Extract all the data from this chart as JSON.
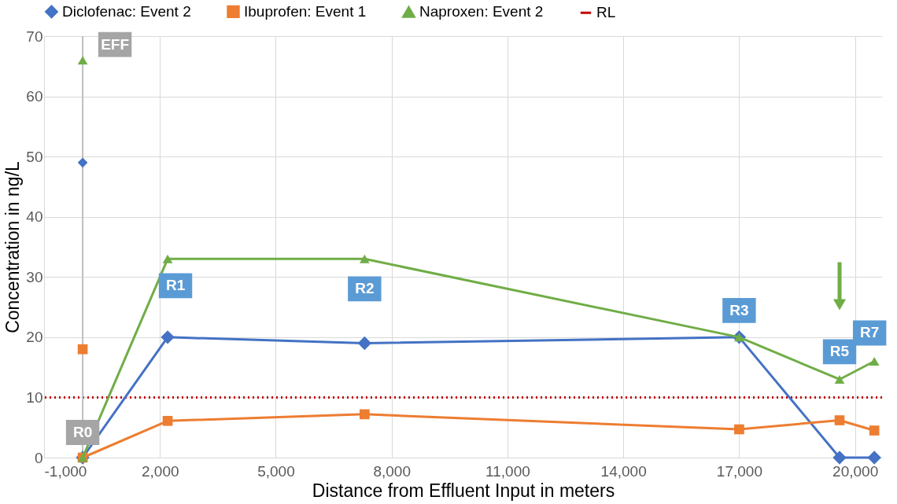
{
  "chart_data": {
    "type": "line",
    "xlabel": "Distance from Effluent Input in meters",
    "ylabel": "Concentration in ng/L",
    "xlim": [
      -1000,
      20700
    ],
    "xticks": [
      {
        "value": -1000,
        "label": "-1,000"
      },
      {
        "value": 2000,
        "label": "2,000"
      },
      {
        "value": 5000,
        "label": "5,000"
      },
      {
        "value": 8000,
        "label": "8,000"
      },
      {
        "value": 11000,
        "label": "11,000"
      },
      {
        "value": 14000,
        "label": "14,000"
      },
      {
        "value": 17000,
        "label": "17,000"
      },
      {
        "value": 20000,
        "label": "20,000"
      }
    ],
    "ylim": [
      0,
      70
    ],
    "yticks": [
      0,
      10,
      20,
      30,
      40,
      50,
      60,
      70
    ],
    "grid": true,
    "legend": "top",
    "series": [
      {
        "name": "Diclofenac: Event 2",
        "color": "#4472c4",
        "marker": "diamond",
        "x": [
          0,
          2200,
          7300,
          17000,
          19600,
          20500
        ],
        "values": [
          0,
          20,
          19,
          20,
          0,
          0
        ]
      },
      {
        "name": "Ibuprofen: Event 1",
        "color": "#ed7d31",
        "marker": "square",
        "x": [
          0,
          2200,
          7300,
          17000,
          19600,
          20500
        ],
        "values": [
          0,
          6.1,
          7.2,
          4.7,
          6.2,
          4.5
        ]
      },
      {
        "name": "Naproxen: Event 2",
        "color": "#70ad47",
        "marker": "triangle",
        "x": [
          0,
          2200,
          7300,
          17000,
          19600,
          20500
        ],
        "values": [
          0,
          33,
          33,
          20,
          13,
          16
        ]
      },
      {
        "type": "scatter",
        "color": "#4472c4",
        "marker": "diamond",
        "x": [
          0
        ],
        "values": [
          49
        ]
      },
      {
        "type": "scatter",
        "color": "#ed7d31",
        "marker": "square",
        "x": [
          0
        ],
        "values": [
          18
        ]
      },
      {
        "type": "scatter",
        "color": "#70ad47",
        "marker": "triangle",
        "x": [
          0
        ],
        "values": [
          66
        ]
      }
    ],
    "ref_lines": [
      {
        "axis": "y",
        "value": 10,
        "label": "RL",
        "color": "#c00000",
        "line_style": "dotted"
      },
      {
        "axis": "x",
        "value": 0,
        "color": "#bfbfbf",
        "line_style": "solid"
      }
    ],
    "annotations": [
      {
        "text": "EFF",
        "x": 0,
        "y": 66
      },
      {
        "text": "R0",
        "x": 0,
        "y": 0
      },
      {
        "text": "R1",
        "x": 2200,
        "y": 33
      },
      {
        "text": "R2",
        "x": 7300,
        "y": 33
      },
      {
        "text": "R3",
        "x": 17000,
        "y": 20
      },
      {
        "text": "R5",
        "x": 19600,
        "y": 13
      },
      {
        "text": "R7",
        "x": 20500,
        "y": 16
      }
    ]
  }
}
